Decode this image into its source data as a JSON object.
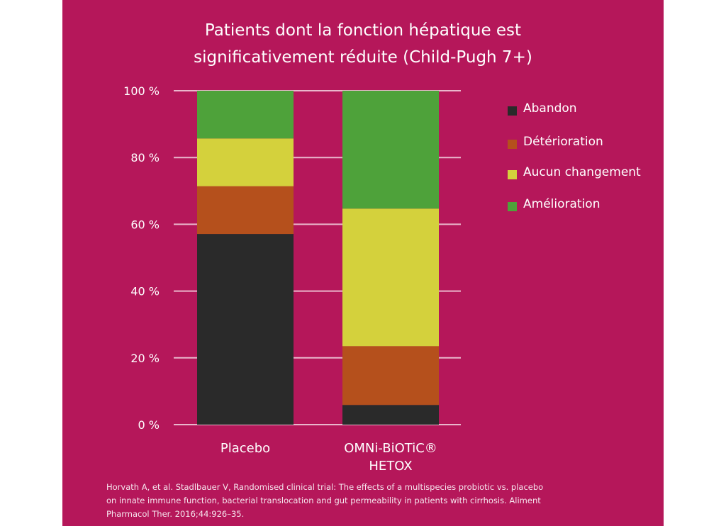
{
  "chart_data": {
    "type": "bar",
    "stacked": true,
    "title": "Patients dont la fonction hépatique est significativement réduite (Child-Pugh 7+)",
    "title_lines": [
      "Patients dont la fonction hépatique est",
      "significativement réduite (Child-Pugh 7+)"
    ],
    "categories": [
      "Placebo",
      "OMNi-BiOTiC® HETOX"
    ],
    "category_lines": [
      [
        "Placebo"
      ],
      [
        "OMNi-BiOTiC®",
        "HETOX"
      ]
    ],
    "ylim": [
      0,
      100
    ],
    "yticks": [
      0,
      20,
      40,
      60,
      80,
      100
    ],
    "ytick_labels": [
      "0 %",
      "20 %",
      "40 %",
      "60 %",
      "80 %",
      "100 %"
    ],
    "grid": true,
    "legend_position": "right",
    "series": [
      {
        "name": "Abandon",
        "color": "#2a2a2a",
        "values": [
          57.1,
          5.9
        ]
      },
      {
        "name": "Détérioration",
        "color": "#b5501c",
        "values": [
          14.3,
          17.6
        ]
      },
      {
        "name": "Aucun changement",
        "color": "#d4d13c",
        "values": [
          14.3,
          41.2
        ]
      },
      {
        "name": "Amélioration",
        "color": "#4ea23a",
        "values": [
          14.3,
          35.3
        ]
      }
    ]
  },
  "background_color": "#b5175a",
  "citation": "Horvath A, et al. Stadlbauer V, Randomised clinical trial: The effects of a multispecies probiotic vs. placebo on innate immune function, bacterial translocation and gut permeability in patients with cirrhosis. Aliment Pharmacol Ther. 2016;44:926–35."
}
